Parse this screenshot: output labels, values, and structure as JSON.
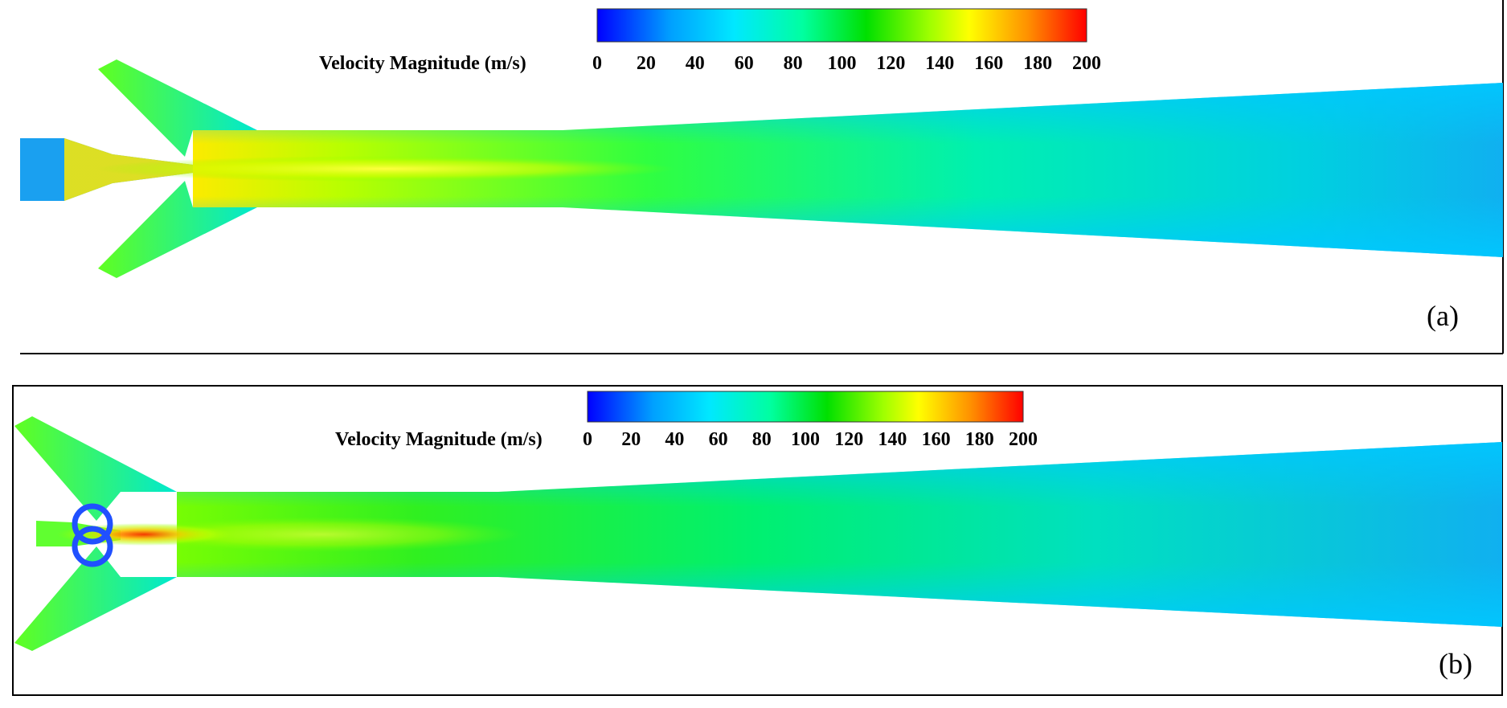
{
  "chart_data": [
    {
      "type": "heatmap",
      "panel_label": "(a)",
      "colorbar": {
        "label": "Velocity Magnitude (m/s)",
        "ticks": [
          "0",
          "20",
          "40",
          "60",
          "80",
          "100",
          "120",
          "140",
          "160",
          "180",
          "200"
        ],
        "range": [
          0,
          200
        ],
        "colors": [
          "#0000ff",
          "#00c8ff",
          "#00ffb0",
          "#00e400",
          "#80ff00",
          "#ffff00",
          "#ff9000",
          "#ff0000"
        ]
      },
      "field": {
        "core_peak": 150,
        "outlet": 45,
        "inlet": 45
      }
    },
    {
      "type": "heatmap",
      "panel_label": "(b)",
      "colorbar": {
        "label": "Velocity Magnitude (m/s)",
        "ticks": [
          "0",
          "20",
          "40",
          "60",
          "80",
          "100",
          "120",
          "140",
          "160",
          "180",
          "200"
        ],
        "range": [
          0,
          200
        ],
        "colors": [
          "#0000ff",
          "#00c8ff",
          "#00ffb0",
          "#00e400",
          "#80ff00",
          "#ffff00",
          "#ff9000",
          "#ff0000"
        ]
      },
      "field": {
        "core_peak": 195,
        "outlet": 45,
        "inlet": 110
      }
    }
  ]
}
